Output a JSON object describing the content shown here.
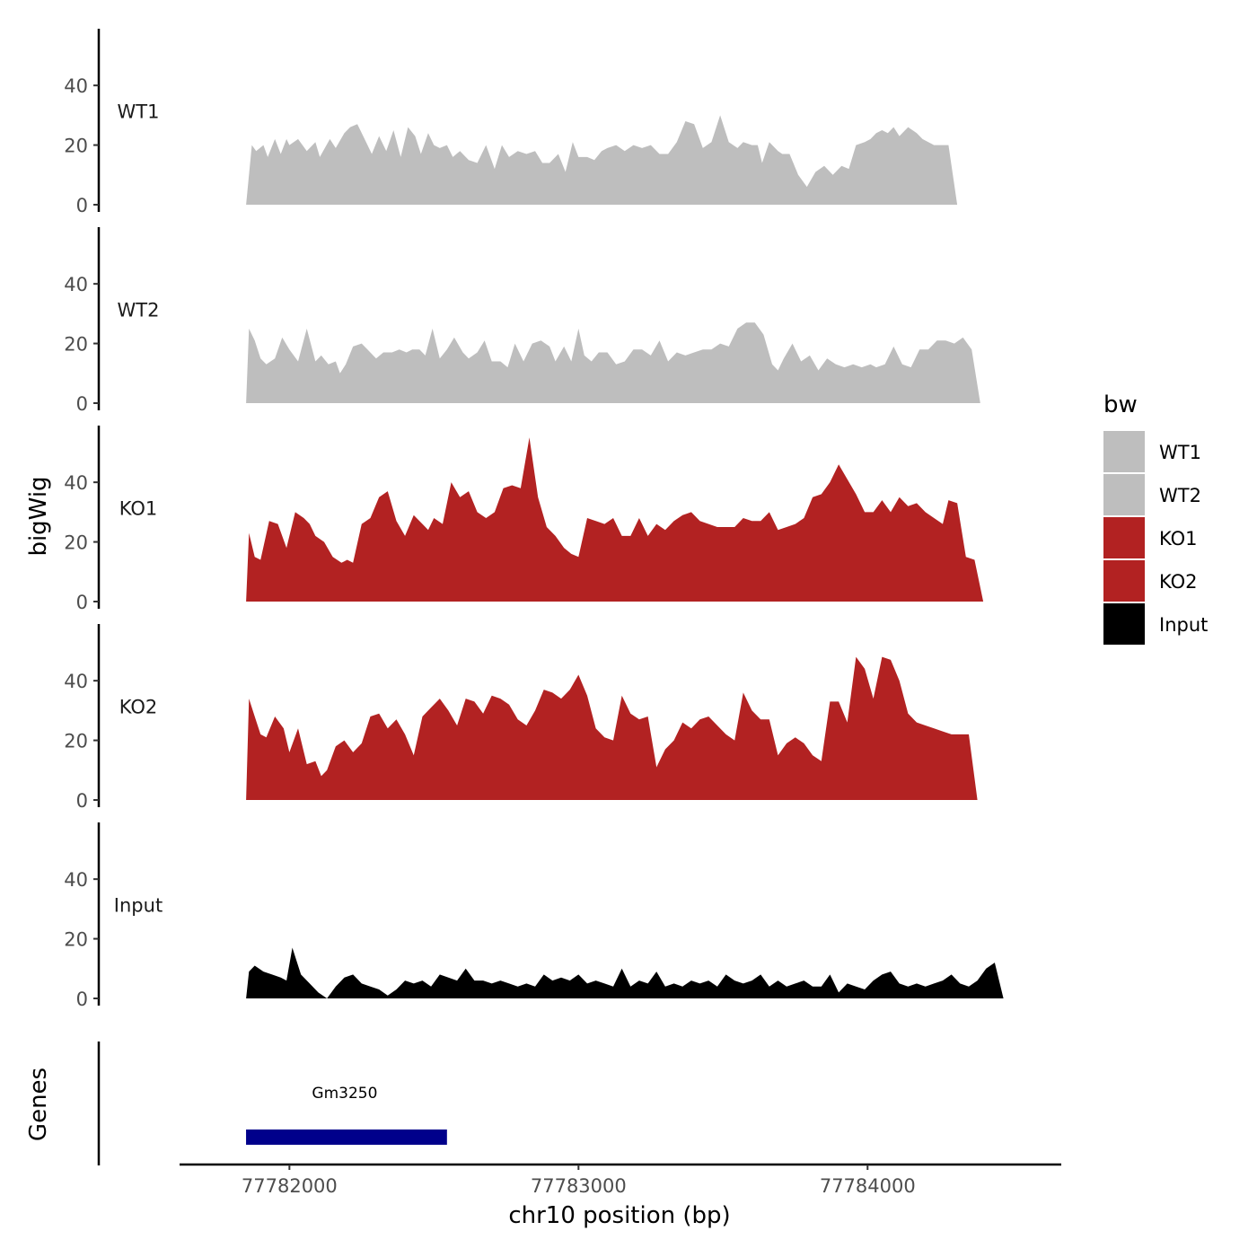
{
  "chart_data": {
    "type": "area",
    "x_axis": {
      "label": "chr10 position (bp)",
      "range": [
        77781620,
        77784670
      ],
      "ticks": [
        77782000,
        77783000,
        77784000
      ],
      "tick_labels": [
        "77782000",
        "77783000",
        "77784000"
      ]
    },
    "y_axis": {
      "label": "bigWig",
      "range": [
        0,
        56
      ],
      "ticks": [
        0,
        20,
        40
      ],
      "tick_labels": [
        "0",
        "20",
        "40"
      ]
    },
    "genes_axis_label": "Genes",
    "legend": {
      "title": "bw",
      "placement": "right",
      "entries": [
        {
          "label": "WT1",
          "color": "#BEBEBE"
        },
        {
          "label": "WT2",
          "color": "#BEBEBE"
        },
        {
          "label": "KO1",
          "color": "#B22222"
        },
        {
          "label": "KO2",
          "color": "#B22222"
        },
        {
          "label": "Input",
          "color": "#000000"
        }
      ]
    },
    "series": [
      {
        "name": "WT1",
        "color": "#BEBEBE",
        "x": [
          77781850,
          77781870,
          77781885,
          77781910,
          77781925,
          77781950,
          77781970,
          77781990,
          77782000,
          77782030,
          77782060,
          77782090,
          77782105,
          77782140,
          77782160,
          77782190,
          77782210,
          77782235,
          77782260,
          77782285,
          77782310,
          77782335,
          77782360,
          77782385,
          77782410,
          77782435,
          77782455,
          77782480,
          77782500,
          77782520,
          77782545,
          77782565,
          77782590,
          77782620,
          77782650,
          77782680,
          77782710,
          77782735,
          77782760,
          77782790,
          77782820,
          77782850,
          77782875,
          77782900,
          77782930,
          77782955,
          77782980,
          77783000,
          77783030,
          77783055,
          77783080,
          77783100,
          77783130,
          77783160,
          77783190,
          77783220,
          77783250,
          77783280,
          77783310,
          77783340,
          77783370,
          77783400,
          77783430,
          77783460,
          77783490,
          77783520,
          77783550,
          77783570,
          77783600,
          77783620,
          77783635,
          77783660,
          77783690,
          77783705,
          77783730,
          77783760,
          77783790,
          77783820,
          77783850,
          77783880,
          77783910,
          77783935,
          77783960,
          77783990,
          77784010,
          77784030,
          77784050,
          77784070,
          77784090,
          77784110,
          77784140,
          77784170,
          77784190,
          77784210,
          77784230,
          77784250,
          77784280,
          77784310,
          77784340,
          77784360,
          77784385,
          77784410,
          77784440,
          77784470,
          77784490,
          77784510,
          77784530
        ],
        "y": [
          0,
          20,
          18,
          20,
          16,
          22,
          17,
          22,
          20,
          22,
          18,
          21,
          16,
          22,
          19,
          24,
          26,
          27,
          22,
          17,
          23,
          18,
          25,
          16,
          26,
          23,
          17,
          24,
          20,
          19,
          20,
          16,
          18,
          15,
          14,
          20,
          12,
          20,
          16,
          18,
          17,
          18,
          14,
          14,
          17,
          11,
          21,
          16,
          16,
          15,
          18,
          19,
          20,
          18,
          20,
          19,
          20,
          17,
          17,
          21,
          28,
          27,
          19,
          21,
          30,
          21,
          19,
          21,
          20,
          20,
          14,
          21,
          18,
          17,
          17,
          10,
          6,
          11,
          13,
          10,
          13,
          12,
          20,
          21,
          22,
          24,
          25,
          24,
          26,
          23,
          26,
          24,
          22,
          21,
          20,
          20,
          20,
          0,
          0,
          0,
          0,
          0,
          0,
          0,
          0,
          0,
          0
        ]
      },
      {
        "name": "WT2",
        "color": "#BEBEBE",
        "x": [
          77781850,
          77781860,
          77781880,
          77781900,
          77781920,
          77781950,
          77781975,
          77782000,
          77782030,
          77782060,
          77782090,
          77782110,
          77782135,
          77782160,
          77782175,
          77782195,
          77782220,
          77782250,
          77782270,
          77782300,
          77782325,
          77782355,
          77782380,
          77782405,
          77782425,
          77782450,
          77782470,
          77782495,
          77782520,
          77782545,
          77782570,
          77782600,
          77782620,
          77782650,
          77782675,
          77782700,
          77782730,
          77782755,
          77782780,
          77782810,
          77782840,
          77782870,
          77782900,
          77782920,
          77782950,
          77782975,
          77783000,
          77783020,
          77783045,
          77783070,
          77783100,
          77783130,
          77783160,
          77783190,
          77783220,
          77783250,
          77783280,
          77783310,
          77783340,
          77783370,
          77783400,
          77783430,
          77783460,
          77783490,
          77783520,
          77783550,
          77783580,
          77783610,
          77783640,
          77783670,
          77783690,
          77783710,
          77783740,
          77783770,
          77783800,
          77783830,
          77783860,
          77783890,
          77783920,
          77783950,
          77783980,
          77784010,
          77784030,
          77784060,
          77784090,
          77784120,
          77784150,
          77784180,
          77784210,
          77784240,
          77784270,
          77784300,
          77784330,
          77784360,
          77784390,
          77784420,
          77784450,
          77784480,
          77784500,
          77784520,
          77784535
        ],
        "y": [
          0,
          25,
          21,
          15,
          13,
          15,
          22,
          18,
          14,
          25,
          14,
          16,
          13,
          14,
          10,
          13,
          19,
          20,
          18,
          15,
          17,
          17,
          18,
          17,
          18,
          18,
          16,
          25,
          15,
          18,
          22,
          17,
          15,
          17,
          21,
          14,
          14,
          12,
          20,
          14,
          20,
          21,
          19,
          14,
          19,
          14,
          25,
          16,
          14,
          17,
          17,
          13,
          14,
          18,
          18,
          16,
          21,
          14,
          17,
          16,
          17,
          18,
          18,
          20,
          19,
          25,
          27,
          27,
          23,
          13,
          11,
          15,
          20,
          14,
          16,
          11,
          15,
          13,
          12,
          13,
          12,
          13,
          12,
          13,
          19,
          13,
          12,
          18,
          18,
          21,
          21,
          20,
          22,
          18,
          0,
          0,
          0,
          0,
          0,
          0,
          0
        ]
      },
      {
        "name": "KO1",
        "color": "#B22222",
        "x": [
          77781850,
          77781860,
          77781880,
          77781900,
          77781930,
          77781960,
          77781990,
          77782020,
          77782050,
          77782070,
          77782090,
          77782120,
          77782150,
          77782180,
          77782200,
          77782220,
          77782250,
          77782280,
          77782310,
          77782340,
          77782370,
          77782400,
          77782430,
          77782460,
          77782480,
          77782500,
          77782530,
          77782560,
          77782590,
          77782620,
          77782650,
          77782680,
          77782710,
          77782740,
          77782770,
          77782800,
          77782830,
          77782860,
          77782890,
          77782920,
          77782950,
          77782975,
          77783000,
          77783030,
          77783060,
          77783090,
          77783120,
          77783150,
          77783180,
          77783210,
          77783240,
          77783270,
          77783300,
          77783330,
          77783360,
          77783390,
          77783420,
          77783450,
          77783480,
          77783510,
          77783540,
          77783570,
          77783600,
          77783630,
          77783660,
          77783690,
          77783720,
          77783750,
          77783780,
          77783810,
          77783840,
          77783870,
          77783900,
          77783930,
          77783960,
          77783990,
          77784020,
          77784050,
          77784080,
          77784110,
          77784140,
          77784170,
          77784200,
          77784230,
          77784260,
          77784280,
          77784310,
          77784340,
          77784370,
          77784400,
          77784430,
          77784460,
          77784480,
          77784500,
          77784520,
          77784530
        ],
        "y": [
          0,
          23,
          15,
          14,
          27,
          26,
          18,
          30,
          28,
          26,
          22,
          20,
          15,
          13,
          14,
          13,
          26,
          28,
          35,
          37,
          27,
          22,
          29,
          26,
          24,
          28,
          26,
          40,
          35,
          37,
          30,
          28,
          30,
          38,
          39,
          38,
          55,
          35,
          25,
          22,
          18,
          16,
          15,
          28,
          27,
          26,
          28,
          22,
          22,
          28,
          22,
          26,
          24,
          27,
          29,
          30,
          27,
          26,
          25,
          25,
          25,
          28,
          27,
          27,
          30,
          24,
          25,
          26,
          28,
          35,
          36,
          40,
          46,
          41,
          36,
          30,
          30,
          34,
          30,
          35,
          32,
          33,
          30,
          28,
          26,
          34,
          33,
          15,
          14,
          0,
          0,
          0,
          0,
          0,
          0,
          0
        ],
        "note": ""
      },
      {
        "name": "KO2",
        "color": "#B22222",
        "x": [
          77781850,
          77781860,
          77781880,
          77781900,
          77781920,
          77781950,
          77781980,
          77782000,
          77782030,
          77782060,
          77782090,
          77782110,
          77782130,
          77782160,
          77782190,
          77782220,
          77782250,
          77782280,
          77782310,
          77782340,
          77782370,
          77782400,
          77782430,
          77782460,
          77782490,
          77782520,
          77782550,
          77782580,
          77782610,
          77782640,
          77782670,
          77782700,
          77782730,
          77782760,
          77782790,
          77782820,
          77782850,
          77782880,
          77782910,
          77782940,
          77782970,
          77783000,
          77783030,
          77783060,
          77783090,
          77783120,
          77783150,
          77783180,
          77783210,
          77783240,
          77783270,
          77783300,
          77783330,
          77783360,
          77783390,
          77783420,
          77783450,
          77783480,
          77783510,
          77783540,
          77783570,
          77783600,
          77783630,
          77783660,
          77783690,
          77783720,
          77783750,
          77783780,
          77783810,
          77783840,
          77783870,
          77783900,
          77783930,
          77783960,
          77783990,
          77784020,
          77784050,
          77784080,
          77784110,
          77784140,
          77784170,
          77784200,
          77784230,
          77784260,
          77784290,
          77784320,
          77784350,
          77784380,
          77784410,
          77784440,
          77784470,
          77784500,
          77784520,
          77784530
        ],
        "y": [
          0,
          34,
          28,
          22,
          21,
          28,
          24,
          16,
          24,
          12,
          13,
          8,
          10,
          18,
          20,
          16,
          19,
          28,
          29,
          24,
          27,
          22,
          15,
          28,
          31,
          34,
          30,
          25,
          34,
          33,
          29,
          35,
          34,
          32,
          27,
          25,
          30,
          37,
          36,
          34,
          37,
          42,
          35,
          24,
          21,
          20,
          35,
          29,
          27,
          28,
          11,
          17,
          20,
          26,
          24,
          27,
          28,
          25,
          22,
          20,
          36,
          30,
          27,
          27,
          15,
          19,
          21,
          19,
          15,
          13,
          33,
          33,
          26,
          48,
          44,
          34,
          48,
          47,
          40,
          29,
          26,
          25,
          24,
          23,
          22,
          22,
          22,
          0,
          0,
          0,
          0,
          0,
          0,
          0
        ]
      },
      {
        "name": "Input",
        "color": "#000000",
        "x": [
          77781850,
          77781860,
          77781880,
          77781910,
          77781940,
          77781970,
          77781990,
          77782010,
          77782040,
          77782070,
          77782100,
          77782130,
          77782160,
          77782190,
          77782220,
          77782250,
          77782280,
          77782310,
          77782340,
          77782370,
          77782400,
          77782430,
          77782460,
          77782490,
          77782520,
          77782550,
          77782580,
          77782610,
          77782640,
          77782670,
          77782700,
          77782730,
          77782760,
          77782790,
          77782820,
          77782850,
          77782880,
          77782910,
          77782940,
          77782970,
          77783000,
          77783030,
          77783060,
          77783090,
          77783120,
          77783150,
          77783180,
          77783210,
          77783240,
          77783270,
          77783300,
          77783330,
          77783360,
          77783390,
          77783420,
          77783450,
          77783480,
          77783510,
          77783540,
          77783570,
          77783600,
          77783630,
          77783660,
          77783690,
          77783720,
          77783750,
          77783780,
          77783810,
          77783840,
          77783870,
          77783900,
          77783930,
          77783960,
          77783990,
          77784020,
          77784050,
          77784080,
          77784110,
          77784140,
          77784170,
          77784200,
          77784230,
          77784260,
          77784290,
          77784320,
          77784350,
          77784380,
          77784410,
          77784440,
          77784470,
          77784500,
          77784520,
          77784540
        ],
        "y": [
          0,
          9,
          11,
          9,
          8,
          7,
          6,
          17,
          8,
          5,
          2,
          0,
          4,
          7,
          8,
          5,
          4,
          3,
          1,
          3,
          6,
          5,
          6,
          4,
          8,
          7,
          6,
          10,
          6,
          6,
          5,
          6,
          5,
          4,
          5,
          4,
          8,
          6,
          7,
          6,
          8,
          5,
          6,
          5,
          4,
          10,
          4,
          6,
          5,
          9,
          4,
          5,
          4,
          6,
          5,
          6,
          4,
          8,
          6,
          5,
          6,
          8,
          4,
          6,
          4,
          5,
          6,
          4,
          4,
          8,
          2,
          5,
          4,
          3,
          6,
          8,
          9,
          5,
          4,
          5,
          4,
          5,
          6,
          8,
          5,
          4,
          6,
          10,
          12,
          0,
          0,
          0,
          0
        ]
      }
    ],
    "gene_track": {
      "genes": [
        {
          "name": "Gm3250",
          "start": 77781850,
          "end": 77782545,
          "color": "#00008B"
        }
      ]
    }
  }
}
